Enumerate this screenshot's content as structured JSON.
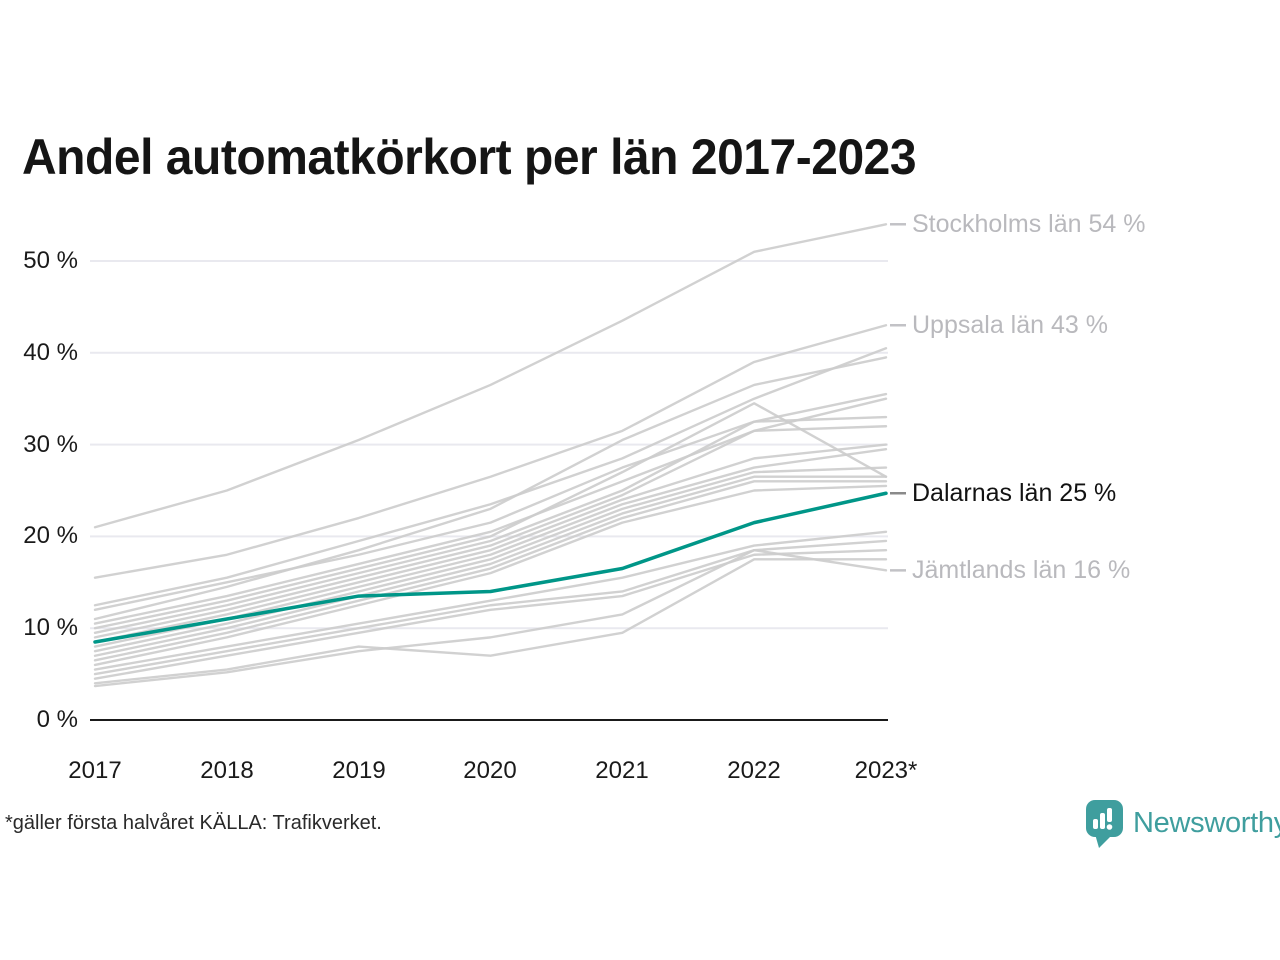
{
  "title": "Andel automatkörkort per län 2017-2023",
  "footnote": "*gäller första halvåret KÄLLA: Trafikverket.",
  "brand": {
    "name": "Newsworthy",
    "color": "#3f9e9e",
    "icon": "newsworthy-speech-bubble-bar-chart-icon"
  },
  "colors": {
    "highlight_line": "#009688",
    "gray_line": "#cccccc",
    "gridline": "#e9e9ef",
    "axis": "#1a1a1a",
    "annotation_gray": "#b9b9bd",
    "annotation_dark": "#121212",
    "tick_dark": "#8a8a8a",
    "tick_light": "#c2c2c6"
  },
  "chart_data": {
    "type": "line",
    "title": "Andel automatkörkort per län 2017-2023",
    "x": [
      2017,
      2018,
      2019,
      2020,
      2021,
      2022,
      2023
    ],
    "x_tick_labels": [
      "2017",
      "2018",
      "2019",
      "2020",
      "2021",
      "2022",
      "2023*"
    ],
    "y_tick_labels": [
      "0 %",
      "10 %",
      "20 %",
      "30 %",
      "40 %",
      "50 %"
    ],
    "y_ticks": [
      0,
      10,
      20,
      30,
      40,
      50
    ],
    "ylim": [
      0,
      56
    ],
    "unit": "%",
    "grid": "horizontal",
    "legend_position": "right-annotations",
    "series": [
      {
        "name": "Stockholms län",
        "labeled": true,
        "highlight": false,
        "values": [
          21,
          25,
          30.5,
          36.5,
          43.5,
          51,
          54
        ]
      },
      {
        "name": "Uppsala län",
        "labeled": true,
        "highlight": false,
        "values": [
          15.5,
          18,
          22,
          26.5,
          31.5,
          39,
          43
        ]
      },
      {
        "name": "unlabeled-1",
        "labeled": false,
        "highlight": false,
        "values": [
          12.5,
          15.5,
          19.5,
          23.5,
          28.5,
          35,
          40.5
        ]
      },
      {
        "name": "unlabeled-2",
        "labeled": false,
        "highlight": false,
        "values": [
          11,
          14.5,
          18.5,
          23,
          30.5,
          36.5,
          39.5
        ]
      },
      {
        "name": "unlabeled-3",
        "labeled": false,
        "highlight": false,
        "values": [
          12,
          15,
          18,
          21.5,
          27.5,
          32.5,
          35.5
        ]
      },
      {
        "name": "unlabeled-4",
        "labeled": false,
        "highlight": false,
        "values": [
          10.5,
          13.5,
          17,
          20.5,
          26,
          31.5,
          35
        ]
      },
      {
        "name": "unlabeled-5",
        "labeled": false,
        "highlight": false,
        "values": [
          10,
          13,
          16.5,
          20,
          27,
          34.5,
          26.5
        ]
      },
      {
        "name": "unlabeled-6",
        "labeled": false,
        "highlight": false,
        "values": [
          9.5,
          12.5,
          16,
          19.5,
          25,
          32.5,
          33
        ]
      },
      {
        "name": "unlabeled-7",
        "labeled": false,
        "highlight": false,
        "values": [
          9,
          12,
          15.5,
          19,
          24.5,
          31.5,
          32
        ]
      },
      {
        "name": "unlabeled-8",
        "labeled": false,
        "highlight": false,
        "values": [
          8.5,
          11.5,
          15,
          18.5,
          24,
          28.5,
          30
        ]
      },
      {
        "name": "unlabeled-9",
        "labeled": false,
        "highlight": false,
        "values": [
          8,
          11,
          14.5,
          18,
          23.5,
          27.5,
          29.5
        ]
      },
      {
        "name": "unlabeled-10",
        "labeled": false,
        "highlight": false,
        "values": [
          7.5,
          10.5,
          14,
          17.5,
          23,
          27,
          27.5
        ]
      },
      {
        "name": "unlabeled-11",
        "labeled": false,
        "highlight": false,
        "values": [
          7,
          10,
          13.5,
          17,
          22.5,
          26.5,
          26.5
        ]
      },
      {
        "name": "unlabeled-12",
        "labeled": false,
        "highlight": false,
        "values": [
          6.5,
          9.5,
          13,
          16.5,
          22,
          26,
          26
        ]
      },
      {
        "name": "unlabeled-13",
        "labeled": false,
        "highlight": false,
        "values": [
          6,
          9,
          12.5,
          16,
          21.5,
          25,
          25.5
        ]
      },
      {
        "name": "Dalarnas län",
        "labeled": true,
        "highlight": true,
        "values": [
          8.5,
          11,
          13.5,
          14,
          16.5,
          21.5,
          24.7
        ]
      },
      {
        "name": "unlabeled-14",
        "labeled": false,
        "highlight": false,
        "values": [
          5.5,
          8,
          10.5,
          13,
          15.5,
          19,
          20.5
        ]
      },
      {
        "name": "unlabeled-15",
        "labeled": false,
        "highlight": false,
        "values": [
          5,
          7.5,
          10,
          12.5,
          14,
          18.5,
          19.5
        ]
      },
      {
        "name": "unlabeled-16",
        "labeled": false,
        "highlight": false,
        "values": [
          4.5,
          7,
          9.5,
          12,
          13.5,
          18,
          18.5
        ]
      },
      {
        "name": "unlabeled-17",
        "labeled": false,
        "highlight": false,
        "values": [
          4,
          5.5,
          8,
          7,
          9.5,
          17.5,
          17.5
        ]
      },
      {
        "name": "Jämtlands län",
        "labeled": true,
        "highlight": false,
        "values": [
          3.7,
          5.2,
          7.5,
          9,
          11.5,
          18.5,
          16.3
        ]
      }
    ],
    "annotations": [
      {
        "text": "Stockholms län 54 %",
        "value": 54,
        "style": "gray"
      },
      {
        "text": "Uppsala län 43 %",
        "value": 43,
        "style": "gray"
      },
      {
        "text": "Dalarnas län 25 %",
        "value": 24.7,
        "style": "dark"
      },
      {
        "text": "Jämtlands län 16 %",
        "value": 16.3,
        "style": "gray"
      }
    ]
  }
}
